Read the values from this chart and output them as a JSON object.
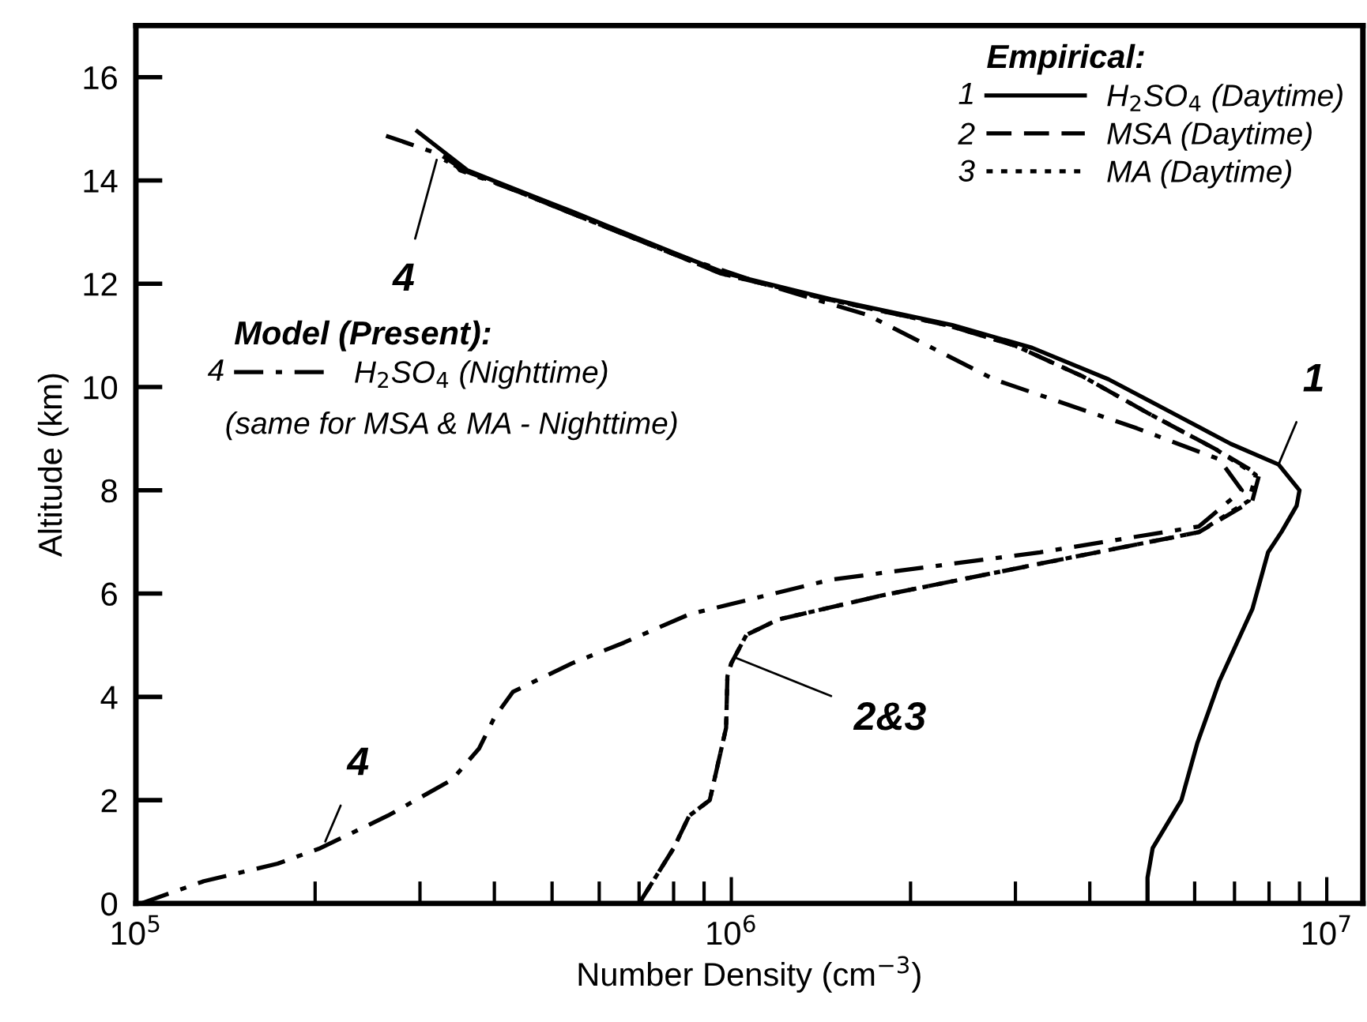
{
  "chart_data": {
    "type": "line",
    "xlabel": "Number Density (cm$^{−3}$)",
    "ylabel": "Altitude (km)",
    "legend_title": "Empirical:",
    "log": "x",
    "xlim": [
      100000,
      11500000
    ],
    "ylim": [
      0,
      17
    ],
    "xticks": [
      {
        "value": 100000,
        "label": "10$^{5}$"
      },
      {
        "value": 200000,
        "label": null
      },
      {
        "value": 300000,
        "label": null
      },
      {
        "value": 400000,
        "label": null
      },
      {
        "value": 500000,
        "label": null
      },
      {
        "value": 600000,
        "label": null
      },
      {
        "value": 700000,
        "label": null
      },
      {
        "value": 800000,
        "label": null
      },
      {
        "value": 900000,
        "label": null
      },
      {
        "value": 1000000,
        "label": "10$^{6}$"
      },
      {
        "value": 2000000,
        "label": null
      },
      {
        "value": 3000000,
        "label": null
      },
      {
        "value": 4000000,
        "label": null
      },
      {
        "value": 5000000,
        "label": null
      },
      {
        "value": 6000000,
        "label": null
      },
      {
        "value": 7000000,
        "label": null
      },
      {
        "value": 8000000,
        "label": null
      },
      {
        "value": 9000000,
        "label": null
      },
      {
        "value": 10000000,
        "label": "10$^{7}$"
      }
    ],
    "yticks": [
      0,
      2,
      4,
      6,
      8,
      10,
      12,
      14,
      16
    ],
    "grid": false,
    "legend": "top right",
    "series": [
      {
        "name": "H$_{2}$SO$_{4}$ (Daytime)",
        "color": "#000000",
        "line_style": "solid",
        "x": [
          5000000,
          5000000,
          5100000,
          5700000,
          6060000,
          6600000,
          7500000,
          7970000,
          8400000,
          8900000,
          9000000,
          8300000,
          6900000,
          5500000,
          4300000,
          3200000,
          2350000,
          1470000,
          980000,
          800000,
          540000,
          440000,
          360000,
          297000
        ],
        "values": [
          0,
          0.5,
          1.07,
          2.0,
          3.1,
          4.3,
          5.7,
          6.8,
          7.2,
          7.7,
          8.0,
          8.5,
          8.9,
          9.5,
          10.15,
          10.76,
          11.2,
          11.7,
          12.2,
          12.6,
          13.4,
          13.8,
          14.2,
          14.95
        ]
      },
      {
        "name": "MSA (Daytime)",
        "color": "#000000",
        "line_style": "dashed",
        "x": [
          700000,
          800000,
          850000,
          920000,
          980000,
          985000,
          1000000,
          1060000,
          1200000,
          1800000,
          3300000,
          6100000,
          7500000,
          7700000,
          6500000,
          5000000,
          3900000,
          3000000,
          2300000,
          1450000,
          960000,
          790000,
          530000,
          435000,
          355000,
          330000
        ],
        "values": [
          0,
          1.07,
          1.7,
          2.0,
          3.4,
          4.4,
          4.65,
          5.2,
          5.5,
          5.97,
          6.58,
          7.19,
          7.8,
          8.3,
          8.8,
          9.5,
          10.2,
          10.8,
          11.2,
          11.7,
          12.2,
          12.6,
          13.4,
          13.8,
          14.2,
          14.4
        ]
      },
      {
        "name": "MA (Daytime)",
        "color": "#000000",
        "line_style": "dotted",
        "x": [
          700000,
          800000,
          850000,
          920000,
          980000,
          985000,
          1000000,
          1060000,
          1200000,
          1800000,
          3300000,
          6100000,
          7400000,
          7600000,
          6500000,
          5000000,
          3900000,
          3000000,
          2300000,
          1450000,
          960000,
          790000,
          530000,
          435000,
          355000,
          330000
        ],
        "values": [
          0,
          1.07,
          1.7,
          2.0,
          3.4,
          4.4,
          4.65,
          5.2,
          5.5,
          5.97,
          6.58,
          7.19,
          7.8,
          8.3,
          8.8,
          9.5,
          10.2,
          10.8,
          11.2,
          11.7,
          12.2,
          12.6,
          13.4,
          13.8,
          14.2,
          14.4
        ]
      },
      {
        "name": "H$_{2}$SO$_{4}$ (Nighttime)",
        "color": "#000000",
        "line_style": "dashdot",
        "x": [
          102000,
          130000,
          173000,
          204000,
          265000,
          340000,
          377000,
          400000,
          430000,
          540000,
          660000,
          850000,
          1470000,
          3300000,
          6100000,
          7200000,
          6600000,
          4800000,
          2760000,
          1690000,
          1130000,
          790000,
          530000,
          435000,
          350000,
          345000,
          325000,
          258000
        ],
        "values": [
          0,
          0.43,
          0.77,
          1.07,
          1.7,
          2.4,
          3.0,
          3.6,
          4.1,
          4.65,
          5.05,
          5.6,
          6.27,
          6.8,
          7.3,
          8.0,
          8.6,
          9.2,
          10.15,
          11.4,
          12.0,
          12.6,
          13.4,
          13.8,
          14.2,
          14.3,
          14.5,
          14.9
        ]
      }
    ],
    "annotations": [
      "1",
      "2",
      "3",
      "4",
      "Model (Present):",
      "(same for MSA & MA - Nighttime)",
      {
        "text": "1",
        "x": 8300000,
        "y": 8.5
      },
      {
        "text": "2&3",
        "x": 1020000,
        "y": 4.75
      },
      {
        "text": "4",
        "x": 320000,
        "y": 14.4
      },
      {
        "text": "4",
        "x": 208000,
        "y": 1.2
      }
    ]
  }
}
